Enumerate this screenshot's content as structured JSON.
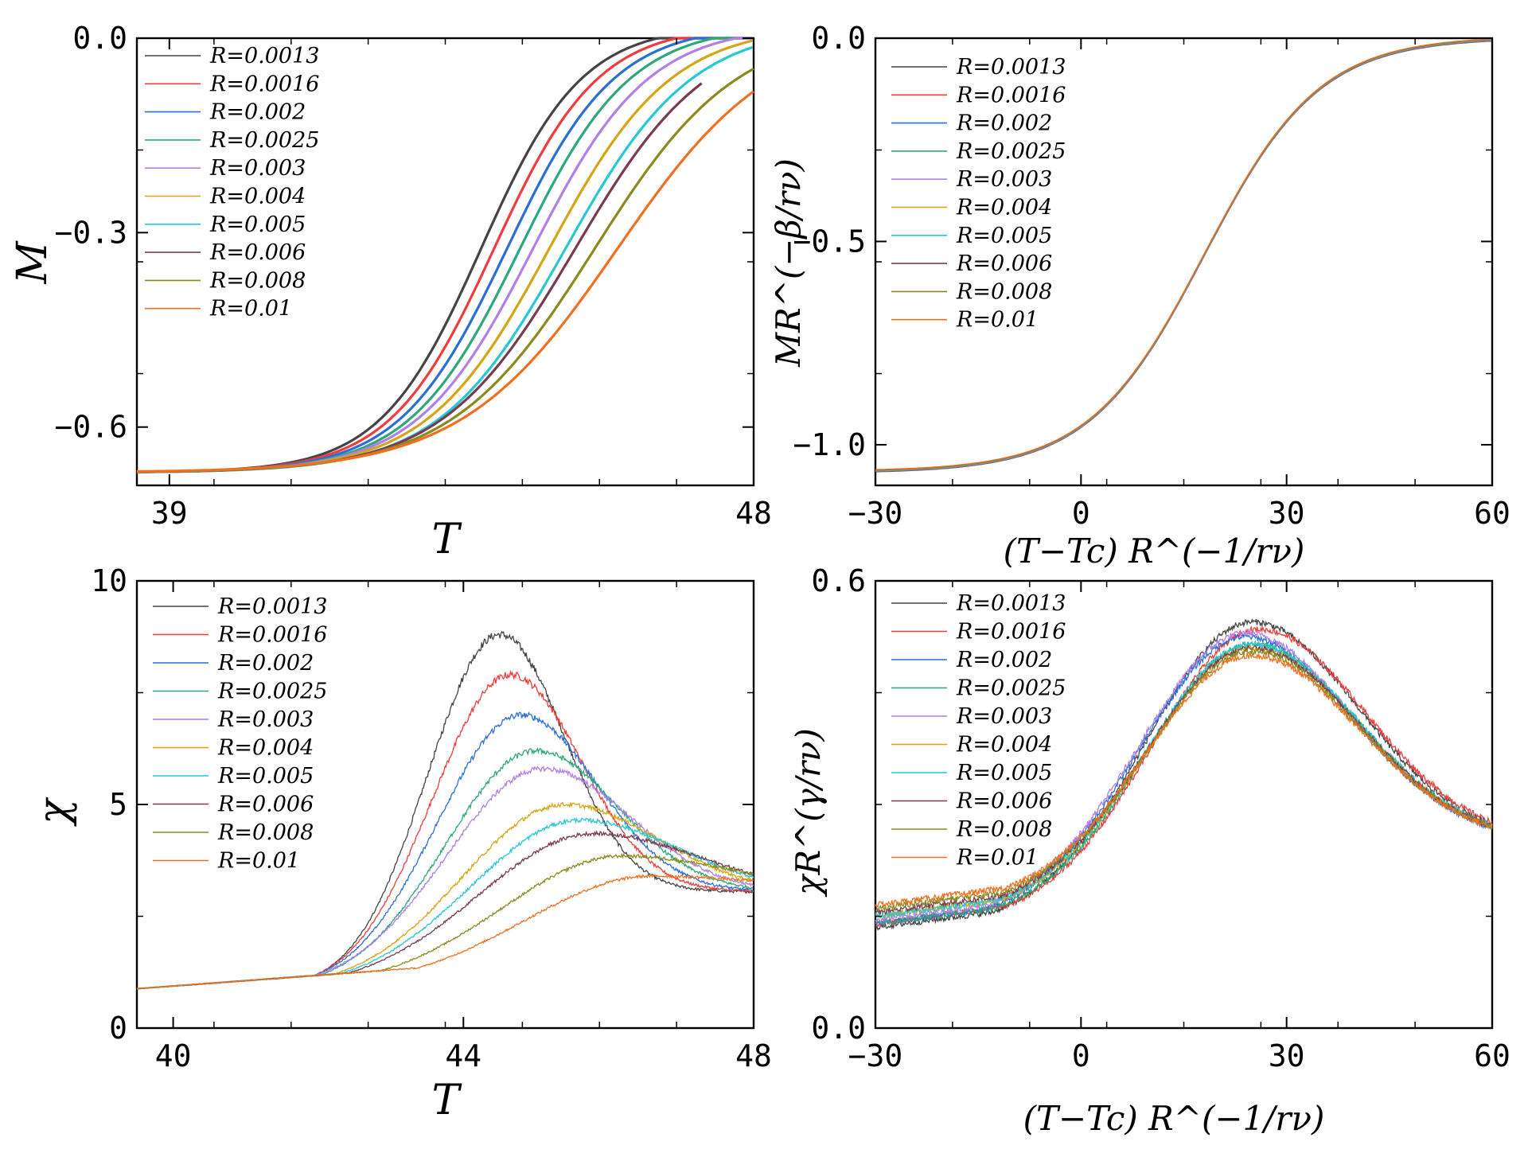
{
  "legend_labels": [
    "R=0.0013",
    "R=0.0016",
    "R=0.002",
    "R=0.0025",
    "R=0.003",
    "R=0.004",
    "R=0.005",
    "R=0.006",
    "R=0.008",
    "R=0.01"
  ],
  "series_colors": [
    "#444444",
    "#f03c3c",
    "#2a6fd6",
    "#2ea87a",
    "#b07fe8",
    "#d4a514",
    "#27c8d4",
    "#7a3b52",
    "#8a8a1e",
    "#f07020"
  ],
  "chart_data": [
    {
      "type": "line",
      "title": "",
      "xlabel": "T",
      "ylabel": "M",
      "xlim": [
        38.5,
        48
      ],
      "ylim": [
        -0.69,
        0.0
      ],
      "xticks": [
        39,
        48
      ],
      "xtick_labels": [
        "39",
        "48"
      ],
      "yticks": [
        0.0,
        -0.3,
        -0.6
      ],
      "ytick_labels": [
        "0.0",
        "−0.3",
        "−0.6"
      ],
      "legend": "top-left",
      "series": [
        {
          "name": "R=0.0013",
          "center": 43.8,
          "width": 1.55,
          "x_end": 48.0
        },
        {
          "name": "R=0.0016",
          "center": 44.0,
          "width": 1.6,
          "x_end": 48.0
        },
        {
          "name": "R=0.002",
          "center": 44.2,
          "width": 1.65,
          "x_end": 48.0
        },
        {
          "name": "R=0.0025",
          "center": 44.4,
          "width": 1.7,
          "x_end": 48.0
        },
        {
          "name": "R=0.003",
          "center": 44.6,
          "width": 1.78,
          "x_end": 48.0
        },
        {
          "name": "R=0.004",
          "center": 44.85,
          "width": 1.88,
          "x_end": 48.0
        },
        {
          "name": "R=0.005",
          "center": 45.1,
          "width": 1.95,
          "x_end": 48.0
        },
        {
          "name": "R=0.006",
          "center": 45.25,
          "width": 2.05,
          "x_end": 47.2
        },
        {
          "name": "R=0.008",
          "center": 45.55,
          "width": 2.2,
          "x_end": 48.0
        },
        {
          "name": "R=0.01",
          "center": 45.9,
          "width": 2.4,
          "x_end": 48.0
        }
      ]
    },
    {
      "type": "line",
      "title": "",
      "xlabel": "(T−Tc) R^(−1/rν)",
      "ylabel": "MR^(−β/rν)",
      "xlim": [
        -30,
        60
      ],
      "ylim": [
        -1.1,
        0.0
      ],
      "xticks": [
        -30,
        0,
        30,
        60
      ],
      "xtick_labels": [
        "−30",
        "0",
        "30",
        "60"
      ],
      "yticks": [
        0.0,
        -0.5,
        -1.0
      ],
      "ytick_labels": [
        "0.0",
        "−0.5",
        "−1.0"
      ],
      "legend": "top-left",
      "collapse": {
        "center": 18,
        "width": 14,
        "x_start": -30,
        "x_end": 60,
        "y_start": -1.07
      }
    },
    {
      "type": "line",
      "title": "",
      "xlabel": "T",
      "ylabel": "χ",
      "xlim": [
        39.5,
        48
      ],
      "ylim": [
        0,
        10
      ],
      "xticks": [
        40,
        44,
        48
      ],
      "xtick_labels": [
        "40",
        "44",
        "48"
      ],
      "yticks": [
        0,
        5,
        10
      ],
      "ytick_labels": [
        "0",
        "5",
        "10"
      ],
      "legend": "top-left",
      "series": [
        {
          "name": "R=0.0013",
          "peak_T": 44.5,
          "peak_value": 8.8
        },
        {
          "name": "R=0.0016",
          "peak_T": 44.65,
          "peak_value": 7.9
        },
        {
          "name": "R=0.002",
          "peak_T": 44.8,
          "peak_value": 7.0
        },
        {
          "name": "R=0.0025",
          "peak_T": 45.0,
          "peak_value": 6.2
        },
        {
          "name": "R=0.003",
          "peak_T": 45.1,
          "peak_value": 5.8
        },
        {
          "name": "R=0.004",
          "peak_T": 45.4,
          "peak_value": 5.0
        },
        {
          "name": "R=0.005",
          "peak_T": 45.6,
          "peak_value": 4.65
        },
        {
          "name": "R=0.006",
          "peak_T": 45.8,
          "peak_value": 4.35
        },
        {
          "name": "R=0.008",
          "peak_T": 46.2,
          "peak_value": 3.85
        },
        {
          "name": "R=0.01",
          "peak_T": 46.6,
          "peak_value": 3.4
        }
      ],
      "start_value": 0.88,
      "end_value": 3.05
    },
    {
      "type": "line",
      "title": "",
      "xlabel": "(T−Tc) R^(−1/rν)",
      "ylabel": "χR^(γ/rν)",
      "xlim": [
        -30,
        60
      ],
      "ylim": [
        0.0,
        0.6
      ],
      "xticks": [
        -30,
        0,
        30,
        60
      ],
      "xtick_labels": [
        "−30",
        "0",
        "30",
        "60"
      ],
      "yticks": [
        0.0,
        0.6
      ],
      "ytick_labels": [
        "0.0",
        "0.6"
      ],
      "legend": "top-left",
      "series": [
        {
          "name": "R=0.0013",
          "peak_x": 25,
          "peak_value": 0.545,
          "start_value": 0.135
        },
        {
          "name": "R=0.0016",
          "peak_x": 26,
          "peak_value": 0.535,
          "start_value": 0.14
        },
        {
          "name": "R=0.002",
          "peak_x": 24,
          "peak_value": 0.525,
          "start_value": 0.14
        },
        {
          "name": "R=0.0025",
          "peak_x": 25,
          "peak_value": 0.515,
          "start_value": 0.14
        },
        {
          "name": "R=0.003",
          "peak_x": 24,
          "peak_value": 0.53,
          "start_value": 0.145
        },
        {
          "name": "R=0.004",
          "peak_x": 25,
          "peak_value": 0.51,
          "start_value": 0.15
        },
        {
          "name": "R=0.005",
          "peak_x": 25,
          "peak_value": 0.515,
          "start_value": 0.15
        },
        {
          "name": "R=0.006",
          "peak_x": 25,
          "peak_value": 0.51,
          "start_value": 0.155
        },
        {
          "name": "R=0.008",
          "peak_x": 25,
          "peak_value": 0.505,
          "start_value": 0.16
        },
        {
          "name": "R=0.01",
          "peak_x": 25,
          "peak_value": 0.5,
          "start_value": 0.165
        }
      ],
      "end_value": 0.25
    }
  ]
}
